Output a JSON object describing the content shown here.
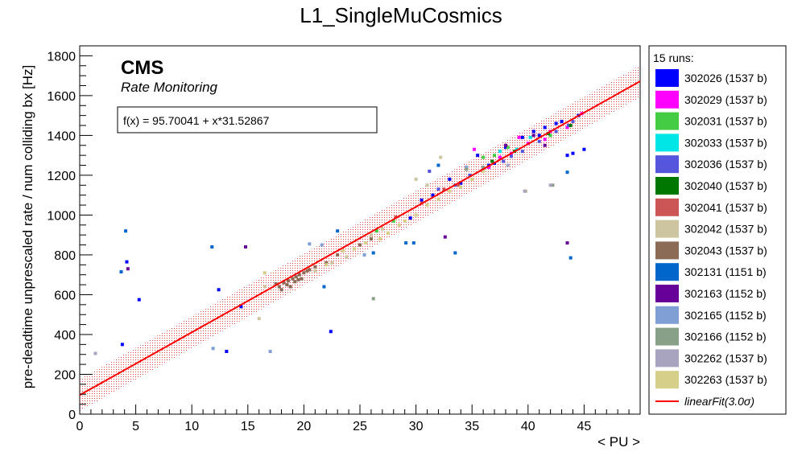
{
  "chart_data": {
    "type": "scatter",
    "title": "L1_SingleMuCosmics",
    "xlabel": "< PU >",
    "ylabel": "pre-deadtime unprescaled rate / num colliding bx [Hz]",
    "xlim": [
      0,
      50
    ],
    "ylim": [
      0,
      1850
    ],
    "xticks": [
      0,
      5,
      10,
      15,
      20,
      25,
      30,
      35,
      40,
      45
    ],
    "yticks": [
      0,
      200,
      400,
      600,
      800,
      1000,
      1200,
      1400,
      1600,
      1800
    ],
    "cms_label": "CMS",
    "cms_sublabel": "Rate Monitoring",
    "fit_label": "f(x) = 95.70041 + x*31.52867",
    "fit": {
      "intercept": 95.70041,
      "slope": 31.52867,
      "band_sigma": 3.0,
      "band_halfwidth": 80,
      "x_range": [
        0,
        50
      ]
    },
    "legend_header": "15 runs:",
    "legend_position": "right",
    "series": [
      {
        "name": "302026 (1537 b)",
        "color": "#0000ff",
        "points": [
          [
            3.8,
            350
          ],
          [
            13.1,
            315
          ],
          [
            22.4,
            415
          ],
          [
            29.5,
            985
          ],
          [
            30.5,
            1075
          ],
          [
            33.0,
            1180
          ],
          [
            35.5,
            1300
          ],
          [
            37.0,
            1260
          ],
          [
            38.0,
            1340
          ],
          [
            39.5,
            1390
          ],
          [
            40.5,
            1420
          ],
          [
            41.5,
            1440
          ],
          [
            42.5,
            1460
          ],
          [
            43.5,
            1300
          ],
          [
            44.0,
            1310
          ],
          [
            45.0,
            1330
          ],
          [
            44.5,
            1500
          ],
          [
            43.0,
            1470
          ],
          [
            41.0,
            1400
          ],
          [
            36.5,
            1250
          ],
          [
            34.0,
            1160
          ],
          [
            31.5,
            1100
          ]
        ]
      },
      {
        "name": "302029 (1537 b)",
        "color": "#ff00ff",
        "points": [
          [
            35.2,
            1330
          ],
          [
            37.5,
            1290
          ],
          [
            38.5,
            1310
          ],
          [
            39.2,
            1390
          ],
          [
            41.5,
            1380
          ],
          [
            42.0,
            1420
          ],
          [
            43.5,
            1440
          ],
          [
            44.8,
            1510
          ],
          [
            40.0,
            1360
          ],
          [
            36.5,
            1240
          ]
        ]
      },
      {
        "name": "302031 (1537 b)",
        "color": "#44cc44",
        "points": [
          [
            36.0,
            1290
          ],
          [
            37.0,
            1300
          ],
          [
            38.2,
            1340
          ],
          [
            42.0,
            1400
          ],
          [
            26.5,
            920
          ],
          [
            28.0,
            970
          ]
        ]
      },
      {
        "name": "302033 (1537 b)",
        "color": "#00e5e5",
        "points": [
          [
            37.5,
            1320
          ],
          [
            39.0,
            1330
          ],
          [
            40.2,
            1390
          ]
        ]
      },
      {
        "name": "302036 (1537 b)",
        "color": "#5555dd",
        "points": [
          [
            31.2,
            1220
          ],
          [
            32.0,
            1130
          ],
          [
            33.5,
            1150
          ],
          [
            34.8,
            1200
          ],
          [
            36.0,
            1230
          ],
          [
            37.8,
            1270
          ],
          [
            39.5,
            1320
          ],
          [
            41.0,
            1370
          ],
          [
            42.5,
            1420
          ],
          [
            44.0,
            1470
          ],
          [
            43.6,
            1450
          ],
          [
            38.5,
            1295
          ]
        ]
      },
      {
        "name": "302040 (1537 b)",
        "color": "#007700",
        "points": [
          [
            36.8,
            1270
          ],
          [
            38.8,
            1320
          ],
          [
            41.8,
            1410
          ],
          [
            43.8,
            1450
          ]
        ]
      },
      {
        "name": "302041 (1537 b)",
        "color": "#cc5555",
        "points": [
          [
            28.2,
            990
          ],
          [
            30.5,
            1060
          ],
          [
            32.5,
            1130
          ],
          [
            33.8,
            1150
          ]
        ]
      },
      {
        "name": "302042 (1537 b)",
        "color": "#cdc4a0",
        "points": [
          [
            16.0,
            480
          ],
          [
            16.5,
            640
          ],
          [
            21.0,
            720
          ],
          [
            22.5,
            760
          ],
          [
            23.8,
            790
          ],
          [
            26.0,
            900
          ],
          [
            27.0,
            930
          ],
          [
            30.0,
            1180
          ],
          [
            31.0,
            1150
          ],
          [
            39.8,
            1120
          ],
          [
            32.2,
            1290
          ]
        ]
      },
      {
        "name": "302043 (1537 b)",
        "color": "#8b6b55",
        "points": [
          [
            17.8,
            640
          ],
          [
            18.2,
            660
          ],
          [
            18.6,
            670
          ],
          [
            18.8,
            640
          ],
          [
            19.0,
            680
          ],
          [
            19.3,
            690
          ],
          [
            19.6,
            700
          ],
          [
            19.8,
            680
          ],
          [
            20.0,
            710
          ],
          [
            20.3,
            720
          ],
          [
            18.5,
            650
          ],
          [
            19.2,
            665
          ],
          [
            19.5,
            675
          ],
          [
            18.0,
            625
          ],
          [
            17.5,
            655
          ],
          [
            20.5,
            725
          ],
          [
            21.0,
            740
          ],
          [
            22.0,
            760
          ],
          [
            23.0,
            800
          ],
          [
            25.0,
            850
          ],
          [
            26.0,
            880
          ]
        ]
      },
      {
        "name": "302131 (1151 b)",
        "color": "#0066cc",
        "points": [
          [
            3.7,
            715
          ],
          [
            4.1,
            920
          ],
          [
            11.8,
            840
          ],
          [
            21.8,
            640
          ],
          [
            23.0,
            920
          ],
          [
            26.2,
            810
          ],
          [
            29.1,
            860
          ],
          [
            29.8,
            860
          ],
          [
            32.0,
            1250
          ],
          [
            33.5,
            810
          ],
          [
            43.8,
            785
          ],
          [
            43.5,
            1215
          ]
        ]
      },
      {
        "name": "302163 (1152 b)",
        "color": "#660099",
        "points": [
          [
            4.3,
            730
          ],
          [
            14.8,
            840
          ],
          [
            32.6,
            890
          ],
          [
            43.5,
            860
          ],
          [
            40.5,
            1400
          ],
          [
            41.5,
            1350
          ],
          [
            38.0,
            1350
          ]
        ]
      },
      {
        "name": "302165 (1152 b)",
        "color": "#7f9fd5",
        "points": [
          [
            11.9,
            330
          ],
          [
            20.5,
            855
          ],
          [
            21.6,
            850
          ],
          [
            25.4,
            800
          ],
          [
            34.5,
            1240
          ]
        ]
      },
      {
        "name": "302166 (1152 b)",
        "color": "#88a088",
        "points": [
          [
            26.2,
            580
          ],
          [
            34.5,
            1230
          ],
          [
            36.0,
            1240
          ],
          [
            42.2,
            1150
          ]
        ]
      },
      {
        "name": "302262 (1537 b)",
        "color": "#a8a4c0",
        "points": [
          [
            1.4,
            305
          ],
          [
            39.7,
            1120
          ],
          [
            42.0,
            1150
          ],
          [
            38.2,
            1250
          ]
        ]
      },
      {
        "name": "302263 (1537 b)",
        "color": "#d6cf8a",
        "points": [
          [
            16.5,
            710
          ],
          [
            22.0,
            750
          ],
          [
            23.5,
            820
          ],
          [
            24.5,
            830
          ],
          [
            25.5,
            860
          ],
          [
            26.8,
            880
          ],
          [
            27.5,
            910
          ],
          [
            28.5,
            950
          ],
          [
            29.0,
            970
          ],
          [
            30.0,
            1000
          ],
          [
            31.0,
            1050
          ],
          [
            32.0,
            1080
          ],
          [
            33.0,
            1120
          ],
          [
            34.0,
            1140
          ],
          [
            35.0,
            1180
          ],
          [
            36.0,
            1220
          ]
        ]
      }
    ],
    "misc_points": [
      {
        "color": "#0000ff",
        "x": 5.3,
        "y": 575
      },
      {
        "color": "#0000ff",
        "x": 12.4,
        "y": 625
      },
      {
        "color": "#0000ff",
        "x": 14.4,
        "y": 540
      },
      {
        "color": "#7f9fd5",
        "x": 17.0,
        "y": 315
      },
      {
        "color": "#0000ff",
        "x": 4.2,
        "y": 765
      }
    ],
    "legend_fit_label": "linearFit(3.0σ)",
    "fit_color": "#ff0000"
  }
}
